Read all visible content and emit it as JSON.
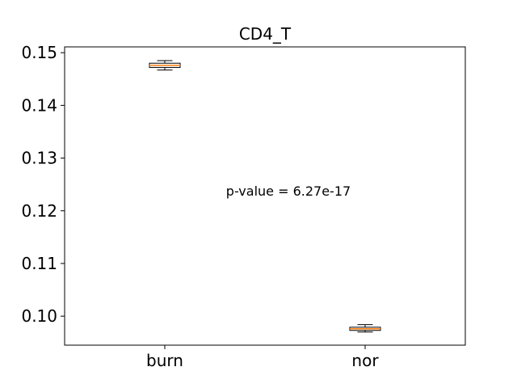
{
  "chart_data": {
    "type": "box",
    "title": "CD4_T",
    "xlabel": "",
    "ylabel": "",
    "categories": [
      "burn",
      "nor"
    ],
    "boxes": [
      {
        "name": "burn",
        "whislo": 0.1467,
        "q1": 0.1472,
        "med": 0.1476,
        "q3": 0.148,
        "whishi": 0.1485
      },
      {
        "name": "nor",
        "whislo": 0.097,
        "q1": 0.0973,
        "med": 0.0976,
        "q3": 0.0979,
        "whishi": 0.0984
      }
    ],
    "ylim": [
      0.0945,
      0.1511
    ],
    "yticks": [
      "0.10",
      "0.11",
      "0.12",
      "0.13",
      "0.14",
      "0.15"
    ],
    "ytick_values": [
      0.1,
      0.11,
      0.12,
      0.13,
      0.14,
      0.15
    ],
    "annotation": "p-value = 6.27e-17",
    "grid": false,
    "colors": {
      "box": "#000000",
      "median": "#ff7f0e",
      "axes": "#000000"
    }
  }
}
